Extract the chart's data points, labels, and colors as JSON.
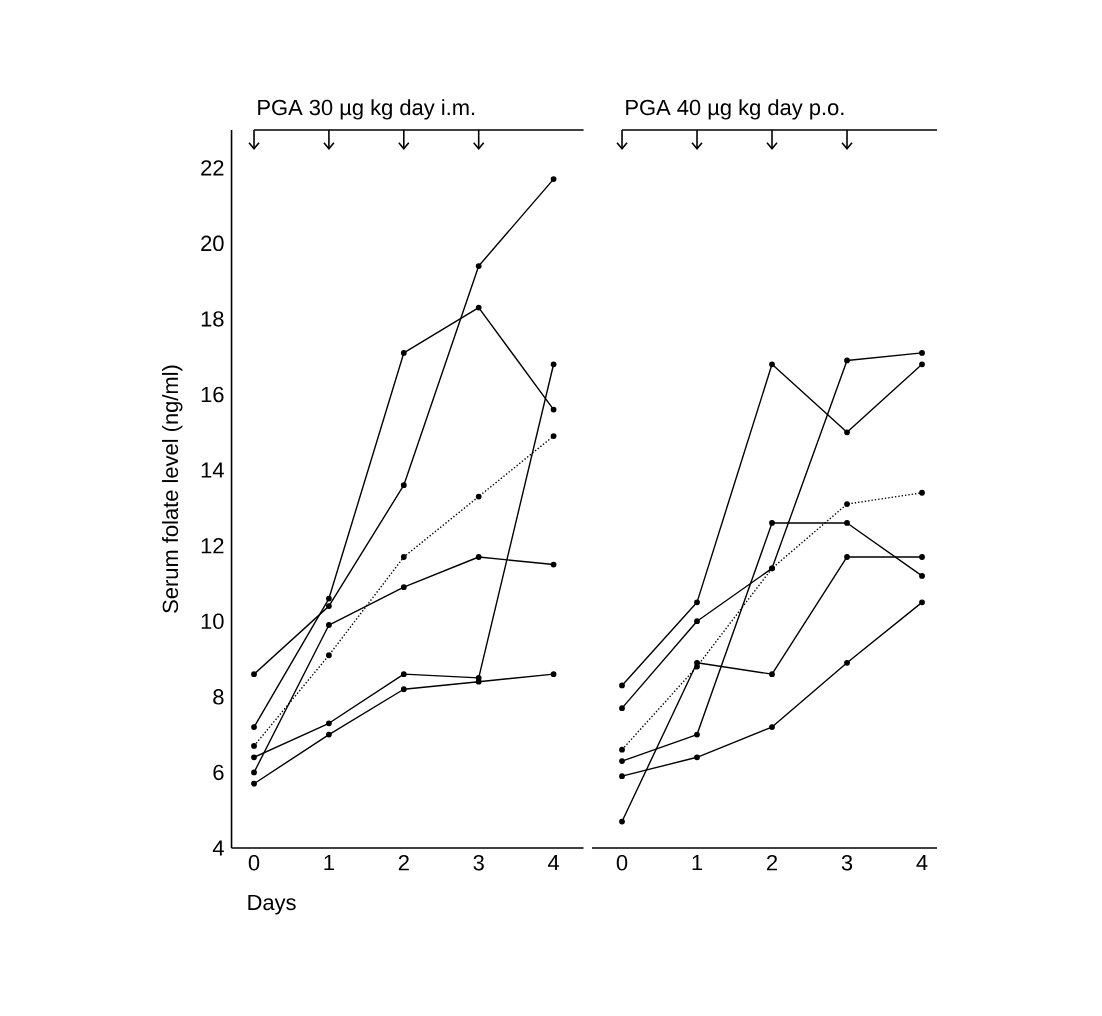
{
  "chart_data": [
    {
      "type": "line",
      "title": "PGA 30 µg kg day i.m.",
      "xlabel": "Days",
      "ylabel": "Serum folate level (ng/ml)",
      "x": [
        0,
        1,
        2,
        3,
        4
      ],
      "xlim": [
        -0.3,
        4.4
      ],
      "ylim": [
        4,
        23
      ],
      "xticks": [
        0,
        1,
        2,
        3,
        4
      ],
      "yticks": [
        4,
        6,
        8,
        10,
        12,
        14,
        16,
        18,
        20,
        22
      ],
      "marker": "circle",
      "line_style": "solid",
      "series": [
        {
          "color": "#000000",
          "values": [
            8.6,
            10.4,
            13.6,
            19.4,
            21.7
          ]
        },
        {
          "color": "#000000",
          "values": [
            7.2,
            10.6,
            17.1,
            18.3,
            15.6
          ]
        },
        {
          "color": "#000000",
          "values": [
            6.0,
            9.9,
            10.9,
            11.7,
            11.5
          ]
        },
        {
          "color": "#000000",
          "values": [
            6.4,
            7.3,
            8.6,
            8.5,
            16.8
          ]
        },
        {
          "color": "#000000",
          "values": [
            5.7,
            7.0,
            8.2,
            8.4,
            8.6
          ]
        },
        {
          "color": "#000000",
          "line_style": "dotted",
          "values": [
            6.7,
            9.1,
            11.7,
            13.3,
            14.9
          ]
        }
      ]
    },
    {
      "type": "line",
      "title": "PGA 40 µg kg day p.o.",
      "x": [
        0,
        1,
        2,
        3,
        4
      ],
      "xlim": [
        -0.4,
        4.2
      ],
      "ylim": [
        4,
        23
      ],
      "xticks": [
        0,
        1,
        2,
        3,
        4
      ],
      "tick_labels": "x",
      "marker": "circle",
      "line_style": "solid",
      "series": [
        {
          "color": "#000000",
          "values": [
            8.3,
            10.5,
            16.8,
            15.0,
            16.8
          ]
        },
        {
          "color": "#000000",
          "values": [
            7.7,
            10.0,
            11.4,
            16.9,
            17.1
          ]
        },
        {
          "color": "#000000",
          "values": [
            6.3,
            7.0,
            12.6,
            12.6,
            11.2
          ]
        },
        {
          "color": "#000000",
          "values": [
            4.7,
            8.9,
            8.6,
            11.7,
            11.7
          ]
        },
        {
          "color": "#000000",
          "values": [
            5.9,
            6.4,
            7.2,
            8.9,
            10.5
          ]
        },
        {
          "color": "#000000",
          "line_style": "dotted",
          "values": [
            6.6,
            8.8,
            11.4,
            13.1,
            13.4
          ]
        }
      ]
    }
  ]
}
